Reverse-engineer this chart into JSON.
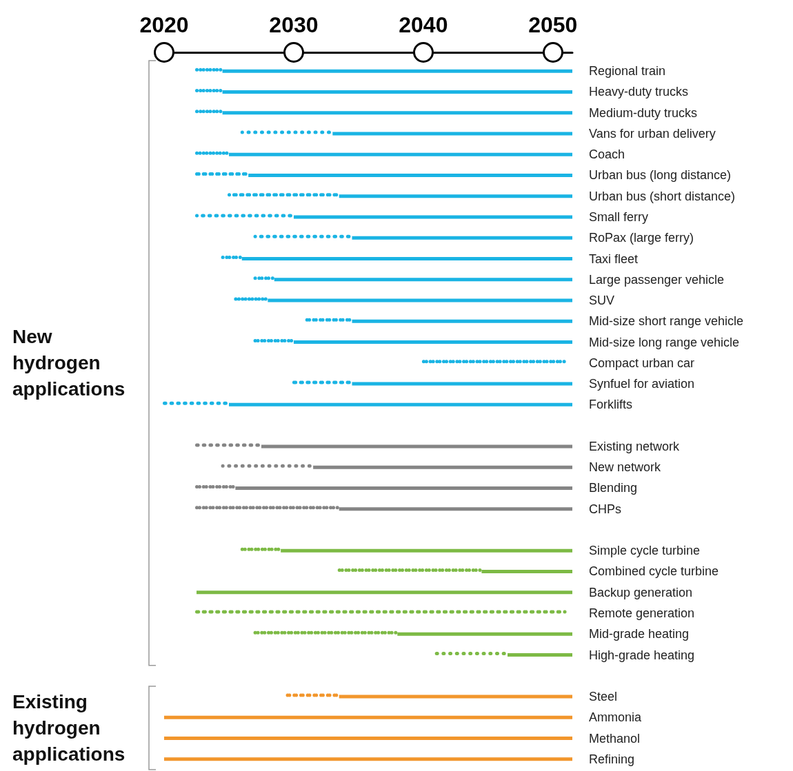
{
  "chart_data": {
    "type": "bar",
    "orientation": "horizontal",
    "categories": [
      "Regional train",
      "Heavy-duty trucks",
      "Medium-duty trucks",
      "Vans for urban delivery",
      "Coach",
      "Urban bus (long distance)",
      "Urban bus (short distance)",
      "Small ferry",
      "RoPax (large ferry)",
      "Taxi fleet",
      "Large passenger vehicle",
      "SUV",
      "Mid-size short range vehicle",
      "Mid-size long range vehicle",
      "Compact urban car",
      "Synfuel for aviation",
      "Forklifts",
      null,
      "Existing network",
      "New network",
      "Blending",
      "CHPs",
      null,
      "Simple cycle turbine",
      "Combined cycle turbine",
      "Backup generation",
      "Remote generation",
      "Mid-grade heating",
      "High-grade heating",
      null,
      "Steel",
      "Ammonia",
      "Methanol",
      "Refining"
    ],
    "series": [
      {
        "line_style": "dotted",
        "colors": [
          "#1ab4e4",
          "#1ab4e4",
          "#1ab4e4",
          "#1ab4e4",
          "#1ab4e4",
          "#1ab4e4",
          "#1ab4e4",
          "#1ab4e4",
          "#1ab4e4",
          "#1ab4e4",
          "#1ab4e4",
          "#1ab4e4",
          "#1ab4e4",
          "#1ab4e4",
          "#1ab4e4",
          "#1ab4e4",
          "#1ab4e4",
          null,
          "#858585",
          "#858585",
          "#858585",
          "#858585",
          null,
          "#7dba45",
          "#7dba45",
          null,
          "#7dba45",
          "#7dba45",
          "#7dba45",
          null,
          "#f2962c",
          null,
          null,
          null
        ],
        "base": [
          2022.5,
          2022.5,
          2022.5,
          2026,
          2022.5,
          2022.5,
          2025,
          2022.5,
          2027,
          2024.5,
          2027,
          2025.5,
          2031,
          2027,
          2040,
          2030,
          2020,
          null,
          2022.5,
          2024.5,
          2022.5,
          2022.5,
          null,
          2026,
          2033.5,
          null,
          2022.5,
          2027,
          2041,
          null,
          2029.5,
          null,
          null,
          null
        ],
        "values": [
          2,
          2,
          2,
          7,
          2.5,
          4,
          8.5,
          7.5,
          7.5,
          1.5,
          1.5,
          2.5,
          3.5,
          3,
          11,
          4.5,
          5,
          null,
          5,
          7,
          3,
          11,
          null,
          3,
          11,
          null,
          28.5,
          11,
          5.5,
          null,
          4,
          null,
          null,
          null
        ]
      },
      {
        "line_style": "solid",
        "colors": [
          "#1ab4e4",
          "#1ab4e4",
          "#1ab4e4",
          "#1ab4e4",
          "#1ab4e4",
          "#1ab4e4",
          "#1ab4e4",
          "#1ab4e4",
          "#1ab4e4",
          "#1ab4e4",
          "#1ab4e4",
          "#1ab4e4",
          "#1ab4e4",
          "#1ab4e4",
          null,
          "#1ab4e4",
          "#1ab4e4",
          null,
          "#858585",
          "#858585",
          "#858585",
          "#858585",
          null,
          "#7dba45",
          "#7dba45",
          "#7dba45",
          null,
          "#7dba45",
          "#7dba45",
          null,
          "#f2962c",
          "#f2962c",
          "#f2962c",
          "#f2962c"
        ],
        "base": [
          2024.5,
          2024.5,
          2024.5,
          2033,
          2025,
          2026.5,
          2033.5,
          2030,
          2034.5,
          2026,
          2028.5,
          2028,
          2034.5,
          2030,
          null,
          2034.5,
          2025,
          null,
          2027.5,
          2031.5,
          2025.5,
          2033.5,
          null,
          2029,
          2044.5,
          2022.5,
          null,
          2038,
          2046.5,
          null,
          2033.5,
          2020,
          2020,
          2020
        ],
        "values": [
          27,
          27,
          27,
          18.5,
          26.5,
          25,
          18,
          21.5,
          17,
          25.5,
          23,
          23.5,
          17,
          21.5,
          null,
          17,
          26.5,
          null,
          24,
          20,
          26,
          18,
          null,
          22.5,
          7,
          29,
          null,
          13.5,
          5,
          null,
          18,
          31.5,
          31.5,
          31.5
        ]
      }
    ],
    "xlim": [
      2020,
      2051.5
    ],
    "xticks": [
      2020,
      2030,
      2040,
      2050
    ],
    "annotations": [
      "New hydrogen applications",
      "Existing hydrogen applications"
    ]
  }
}
